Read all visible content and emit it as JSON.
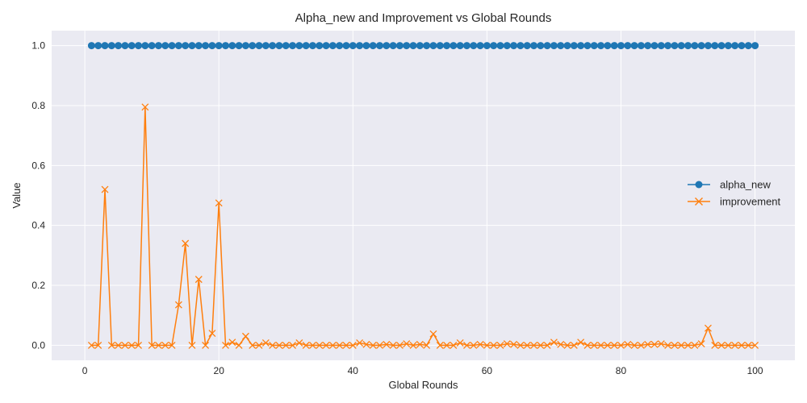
{
  "chart_data": {
    "type": "line",
    "title": "Alpha_new and Improvement vs Global Rounds",
    "xlabel": "Global Rounds",
    "ylabel": "Value",
    "xlim": [
      -4.95,
      105.95
    ],
    "ylim": [
      -0.05,
      1.05
    ],
    "xticks": [
      0,
      20,
      40,
      60,
      80,
      100
    ],
    "yticks": [
      0.0,
      0.2,
      0.4,
      0.6,
      0.8,
      1.0
    ],
    "xtick_labels": [
      "0",
      "20",
      "40",
      "60",
      "80",
      "100"
    ],
    "ytick_labels": [
      "0.0",
      "0.2",
      "0.4",
      "0.6",
      "0.8",
      "1.0"
    ],
    "grid": true,
    "legend_position": "center-right",
    "x": [
      1,
      2,
      3,
      4,
      5,
      6,
      7,
      8,
      9,
      10,
      11,
      12,
      13,
      14,
      15,
      16,
      17,
      18,
      19,
      20,
      21,
      22,
      23,
      24,
      25,
      26,
      27,
      28,
      29,
      30,
      31,
      32,
      33,
      34,
      35,
      36,
      37,
      38,
      39,
      40,
      41,
      42,
      43,
      44,
      45,
      46,
      47,
      48,
      49,
      50,
      51,
      52,
      53,
      54,
      55,
      56,
      57,
      58,
      59,
      60,
      61,
      62,
      63,
      64,
      65,
      66,
      67,
      68,
      69,
      70,
      71,
      72,
      73,
      74,
      75,
      76,
      77,
      78,
      79,
      80,
      81,
      82,
      83,
      84,
      85,
      86,
      87,
      88,
      89,
      90,
      91,
      92,
      93,
      94,
      95,
      96,
      97,
      98,
      99,
      100
    ],
    "series": [
      {
        "name": "alpha_new",
        "color": "#1f77b4",
        "marker": "circle",
        "values": [
          1,
          1,
          1,
          1,
          1,
          1,
          1,
          1,
          1,
          1,
          1,
          1,
          1,
          1,
          1,
          1,
          1,
          1,
          1,
          1,
          1,
          1,
          1,
          1,
          1,
          1,
          1,
          1,
          1,
          1,
          1,
          1,
          1,
          1,
          1,
          1,
          1,
          1,
          1,
          1,
          1,
          1,
          1,
          1,
          1,
          1,
          1,
          1,
          1,
          1,
          1,
          1,
          1,
          1,
          1,
          1,
          1,
          1,
          1,
          1,
          1,
          1,
          1,
          1,
          1,
          1,
          1,
          1,
          1,
          1,
          1,
          1,
          1,
          1,
          1,
          1,
          1,
          1,
          1,
          1,
          1,
          1,
          1,
          1,
          1,
          1,
          1,
          1,
          1,
          1,
          1,
          1,
          1,
          1,
          1,
          1,
          1,
          1,
          1,
          1
        ]
      },
      {
        "name": "improvement",
        "color": "#ff7f0e",
        "marker": "x",
        "values": [
          0.0,
          0.0,
          0.52,
          0.0,
          0.0,
          0.0,
          0.0,
          0.0,
          0.795,
          0.0,
          0.0,
          0.0,
          0.0,
          0.135,
          0.34,
          0.0,
          0.22,
          0.0,
          0.04,
          0.475,
          0.0,
          0.01,
          0.0,
          0.03,
          0.0,
          0.0,
          0.008,
          0.0,
          0.0,
          0.0,
          0.0,
          0.008,
          0.0,
          0.0,
          0.0,
          0.0,
          0.0,
          0.0,
          0.0,
          0.0,
          0.008,
          0.003,
          0.0,
          0.0,
          0.003,
          0.0,
          0.0,
          0.005,
          0.0,
          0.003,
          0.0,
          0.038,
          0.0,
          0.0,
          0.0,
          0.008,
          0.0,
          0.0,
          0.003,
          0.0,
          0.0,
          0.0,
          0.005,
          0.003,
          0.0,
          0.0,
          0.0,
          0.0,
          0.0,
          0.01,
          0.003,
          0.0,
          0.0,
          0.01,
          0.0,
          0.0,
          0.0,
          0.0,
          0.0,
          0.0,
          0.003,
          0.0,
          0.0,
          0.003,
          0.003,
          0.005,
          0.0,
          0.0,
          0.0,
          0.0,
          0.0,
          0.005,
          0.057,
          0.0,
          0.0,
          0.0,
          0.0,
          0.0,
          0.0,
          0.0
        ]
      }
    ]
  }
}
